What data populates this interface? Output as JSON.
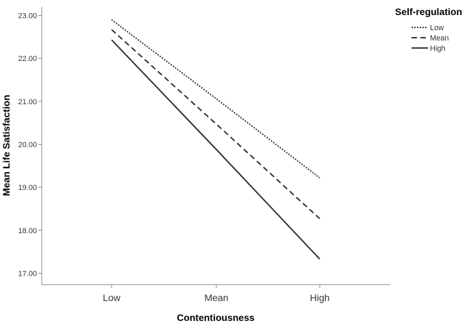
{
  "chart_data": {
    "type": "line",
    "title": "",
    "xlabel": "Contentiousness",
    "ylabel": "Mean Life Satisfaction",
    "categories": [
      "Low",
      "Mean",
      "High"
    ],
    "ylim": [
      16.9,
      23.2
    ],
    "yticks": [
      "17.00",
      "18.00",
      "19.00",
      "20.00",
      "21.00",
      "22.00",
      "23.00"
    ],
    "grid": false,
    "legend": {
      "title": "Self-regulation",
      "position": "top-right",
      "entries": [
        "Low",
        "Mean",
        "High"
      ]
    },
    "series": [
      {
        "name": "Low",
        "values": [
          22.9,
          21.06,
          19.22
        ],
        "style": "dotted",
        "color": "#333333"
      },
      {
        "name": "Mean",
        "values": [
          22.67,
          20.47,
          18.27
        ],
        "style": "dashed",
        "color": "#333333"
      },
      {
        "name": "High",
        "values": [
          22.43,
          19.88,
          17.33
        ],
        "style": "solid",
        "color": "#333333"
      }
    ]
  }
}
